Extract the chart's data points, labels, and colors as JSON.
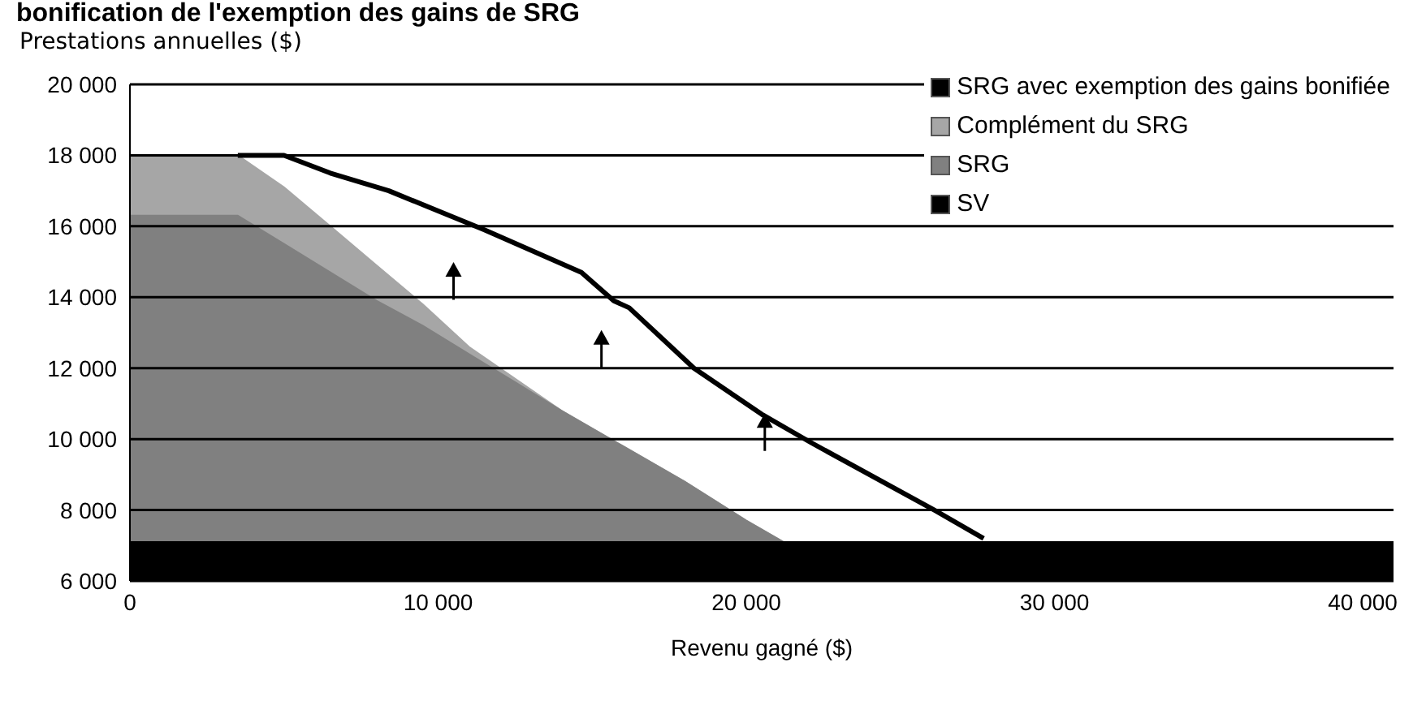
{
  "chart_data": {
    "type": "area",
    "title": "bonification de l'exemption des gains de SRG",
    "ylabel": "Prestations annuelles ($)",
    "xlabel": "Revenu  gagné ($)",
    "x": [
      0,
      3500,
      5000,
      6500,
      8000,
      9500,
      11000,
      12500,
      14000,
      16000,
      18000,
      20000,
      21200,
      25000,
      30000,
      35000,
      41000
    ],
    "series": [
      {
        "name": "SRG avec exemption des gains bonifiée",
        "type": "line",
        "color": "#000000",
        "x": [
          3500,
          5000,
          6500,
          8400,
          11500,
          14650,
          15700,
          16200,
          18300,
          20500,
          22100,
          26100,
          27700
        ],
        "values": [
          18000,
          18000,
          17500,
          17000,
          15900,
          14700,
          13900,
          13700,
          12000,
          10700,
          9900,
          8000,
          7200
        ]
      },
      {
        "name": "Complément du SRG",
        "color": "#a6a6a6",
        "values": [
          18000,
          18000,
          17100,
          16000,
          14900,
          13800,
          12600,
          11700,
          10800,
          9800,
          8800,
          7700,
          7100,
          7100,
          7100,
          7100,
          7100
        ]
      },
      {
        "name": "SRG",
        "color": "#808080",
        "values": [
          16300,
          16300,
          15500,
          14700,
          13900,
          13200,
          12400,
          11600,
          10800,
          9800,
          8800,
          7700,
          7100,
          7100,
          7100,
          7100,
          7100
        ]
      },
      {
        "name": "SV",
        "color": "#000000",
        "values": [
          7100,
          7100,
          7100,
          7100,
          7100,
          7100,
          7100,
          7100,
          7100,
          7100,
          7100,
          7100,
          7100,
          7100,
          7100,
          7100,
          7100
        ]
      }
    ],
    "xlim": [
      0,
      41000
    ],
    "xticks": [
      {
        "value": 0,
        "label": "0"
      },
      {
        "value": 10000,
        "label": "10 000"
      },
      {
        "value": 20000,
        "label": "20 000"
      },
      {
        "value": 30000,
        "label": "30 000"
      },
      {
        "value": 40000,
        "label": "40 000"
      }
    ],
    "ylim": [
      6000,
      20000
    ],
    "yticks": [
      {
        "value": 6000,
        "label": "6 000"
      },
      {
        "value": 8000,
        "label": "8 000"
      },
      {
        "value": 10000,
        "label": "10 000"
      },
      {
        "value": 12000,
        "label": "12 000"
      },
      {
        "value": 14000,
        "label": "14 000"
      },
      {
        "value": 16000,
        "label": "16 000"
      },
      {
        "value": 18000,
        "label": "18 000"
      },
      {
        "value": 20000,
        "label": "20 000"
      }
    ],
    "grid": "y",
    "legend": "top right",
    "marker": "none",
    "line_style": "solid"
  }
}
